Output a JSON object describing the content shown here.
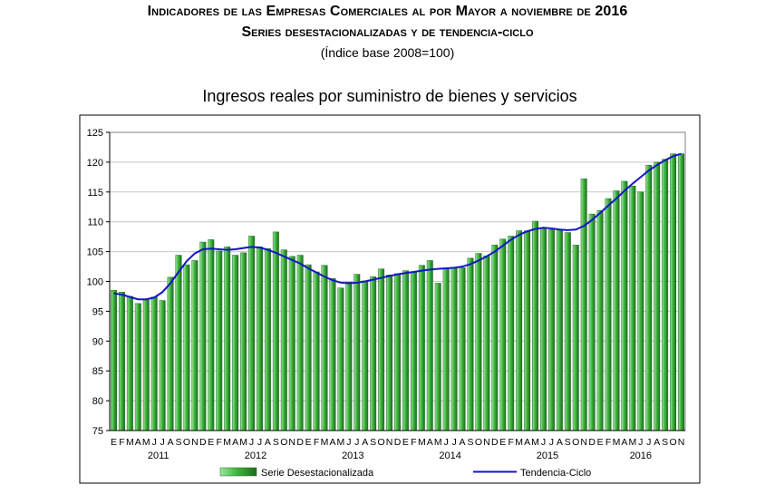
{
  "header": {
    "title": "Indicadores de las Empresas Comerciales al por Mayor a noviembre de 2016",
    "subtitle": "Series desestacionalizadas y de tendencia-ciclo",
    "base": "(Índice base 2008=100)"
  },
  "colors": {
    "bar_fill": "#3db83d",
    "bar_light": "#9ee49e",
    "bar_edge": "#1f6b1f",
    "trend_line": "#1414c8",
    "grid": "#c8c8c8"
  },
  "chart_data": {
    "type": "bar",
    "title": "Ingresos reales por suministro de bienes y servicios",
    "xlabel": "",
    "ylabel": "",
    "ylim": [
      75,
      125
    ],
    "yticks": [
      75,
      80,
      85,
      90,
      95,
      100,
      105,
      110,
      115,
      120,
      125
    ],
    "grid": true,
    "legend_position": "bottom",
    "month_labels": [
      "E",
      "F",
      "M",
      "A",
      "M",
      "J",
      "J",
      "A",
      "S",
      "O",
      "N",
      "D",
      "E",
      "F",
      "M",
      "A",
      "M",
      "J",
      "J",
      "A",
      "S",
      "O",
      "N",
      "D",
      "E",
      "F",
      "M",
      "A",
      "M",
      "J",
      "J",
      "A",
      "S",
      "O",
      "N",
      "D",
      "E",
      "F",
      "M",
      "A",
      "M",
      "J",
      "J",
      "A",
      "S",
      "O",
      "N",
      "D",
      "E",
      "F",
      "M",
      "A",
      "M",
      "J",
      "J",
      "A",
      "S",
      "O",
      "N",
      "D",
      "E",
      "F",
      "M",
      "A",
      "M",
      "J",
      "J",
      "A",
      "S",
      "O",
      "N"
    ],
    "years": [
      {
        "label": "2011",
        "start": 0,
        "end": 11
      },
      {
        "label": "2012",
        "start": 12,
        "end": 23
      },
      {
        "label": "2013",
        "start": 24,
        "end": 35
      },
      {
        "label": "2014",
        "start": 36,
        "end": 47
      },
      {
        "label": "2015",
        "start": 48,
        "end": 59
      },
      {
        "label": "2016",
        "start": 60,
        "end": 70
      }
    ],
    "series": [
      {
        "name": "Serie Desestacionalizada",
        "type": "bar",
        "values": [
          98.5,
          98.2,
          97.5,
          96.3,
          96.9,
          97.4,
          96.8,
          100.7,
          104.4,
          102.8,
          103.5,
          106.6,
          107.0,
          105.1,
          105.8,
          104.4,
          104.8,
          107.6,
          105.8,
          105.5,
          108.3,
          105.3,
          104.2,
          104.4,
          102.8,
          101.6,
          102.7,
          100.5,
          98.9,
          99.9,
          101.2,
          100.1,
          100.8,
          102.1,
          101.1,
          101.3,
          101.8,
          101.5,
          102.7,
          103.5,
          99.7,
          102.2,
          102.2,
          102.3,
          103.9,
          104.7,
          104.3,
          106.1,
          107.1,
          107.6,
          108.5,
          108.5,
          110.1,
          108.9,
          108.7,
          108.6,
          108.2,
          106.1,
          117.2,
          111.3,
          111.9,
          113.9,
          115.2,
          116.8,
          116.0,
          115.0,
          119.5,
          120.0,
          120.5,
          121.4,
          121.4
        ]
      },
      {
        "name": "Tendencia-Ciclo",
        "type": "line",
        "values": [
          98.0,
          97.8,
          97.4,
          97.0,
          97.0,
          97.3,
          98.2,
          99.7,
          101.6,
          103.4,
          104.7,
          105.4,
          105.5,
          105.4,
          105.3,
          105.4,
          105.6,
          105.8,
          105.7,
          105.3,
          104.8,
          104.2,
          103.6,
          103.0,
          102.2,
          101.5,
          100.8,
          100.2,
          99.8,
          99.7,
          99.8,
          100.0,
          100.3,
          100.6,
          100.9,
          101.2,
          101.4,
          101.6,
          101.8,
          102.0,
          102.1,
          102.2,
          102.3,
          102.5,
          102.9,
          103.5,
          104.2,
          105.0,
          106.0,
          107.0,
          107.8,
          108.4,
          108.8,
          109.0,
          108.9,
          108.7,
          108.6,
          108.7,
          109.3,
          110.3,
          111.5,
          112.7,
          113.9,
          115.2,
          116.4,
          117.5,
          118.6,
          119.5,
          120.3,
          121.0,
          121.4
        ]
      }
    ]
  }
}
